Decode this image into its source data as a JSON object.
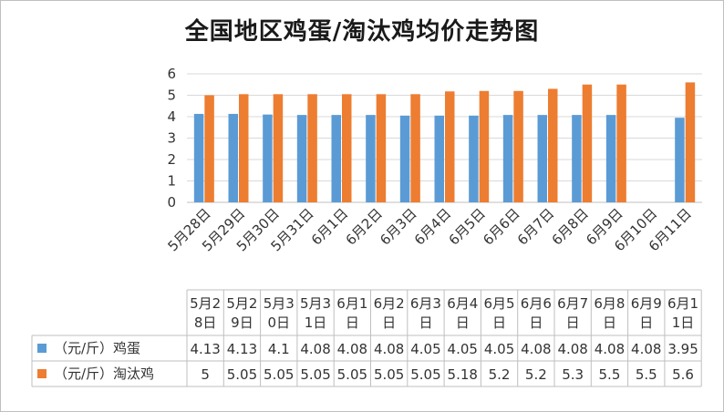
{
  "chart_data": {
    "type": "bar",
    "title": "全国地区鸡蛋/淘汰鸡均价走势图",
    "categories": [
      "5月28日",
      "5月29日",
      "5月30日",
      "5月31日",
      "6月1日",
      "6月2日",
      "6月3日",
      "6月4日",
      "6月5日",
      "6月6日",
      "6月7日",
      "6月8日",
      "6月9日",
      "6月10日",
      "6月11日"
    ],
    "table_categories": [
      [
        "5月2",
        "8日"
      ],
      [
        "5月2",
        "9日"
      ],
      [
        "5月3",
        "0日"
      ],
      [
        "5月3",
        "1日"
      ],
      [
        "6月1",
        "日"
      ],
      [
        "6月2",
        "日"
      ],
      [
        "6月3",
        "日"
      ],
      [
        "6月4",
        "日"
      ],
      [
        "6月5",
        "日"
      ],
      [
        "6月6",
        "日"
      ],
      [
        "6月7",
        "日"
      ],
      [
        "6月8",
        "日"
      ],
      [
        "6月9",
        "日"
      ],
      [
        "6月1",
        "1日"
      ]
    ],
    "series": [
      {
        "name": "（元/斤）鸡蛋",
        "color": "#5b9bd5",
        "values": [
          4.13,
          4.13,
          4.1,
          4.08,
          4.08,
          4.08,
          4.05,
          4.05,
          4.05,
          4.08,
          4.08,
          4.08,
          4.08,
          null,
          3.95
        ],
        "table_values": [
          "4.13",
          "4.13",
          "4.1",
          "4.08",
          "4.08",
          "4.08",
          "4.05",
          "4.05",
          "4.05",
          "4.08",
          "4.08",
          "4.08",
          "4.08",
          "3.95"
        ]
      },
      {
        "name": "（元/斤）淘汰鸡",
        "color": "#ed7d31",
        "values": [
          5,
          5.05,
          5.05,
          5.05,
          5.05,
          5.05,
          5.05,
          5.18,
          5.2,
          5.2,
          5.3,
          5.5,
          5.5,
          null,
          5.6
        ],
        "table_values": [
          "5",
          "5.05",
          "5.05",
          "5.05",
          "5.05",
          "5.05",
          "5.05",
          "5.18",
          "5.2",
          "5.2",
          "5.3",
          "5.5",
          "5.5",
          "5.6"
        ]
      }
    ],
    "ylim": [
      0,
      6
    ],
    "yticks": [
      0,
      1,
      2,
      3,
      4,
      5,
      6
    ],
    "grid": true,
    "legend": "data-table"
  }
}
